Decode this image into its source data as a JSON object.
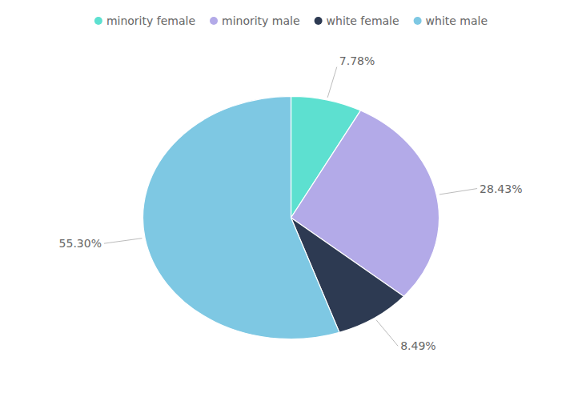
{
  "chart_data": {
    "type": "pie",
    "categories": [
      "minority female",
      "minority male",
      "white female",
      "white male"
    ],
    "values": [
      7.78,
      28.43,
      8.49,
      55.3
    ],
    "value_labels": [
      "7.78%",
      "28.43%",
      "8.49%",
      "55.30%"
    ],
    "colors": [
      "#5de0d0",
      "#b3aae8",
      "#2d3a52",
      "#7ec8e3"
    ],
    "data_labels": true,
    "legend": "top"
  }
}
